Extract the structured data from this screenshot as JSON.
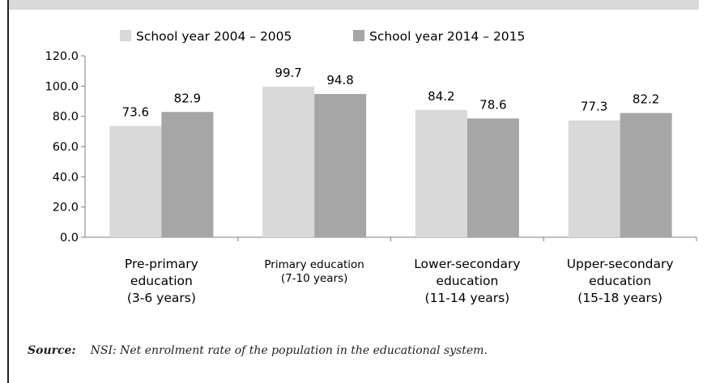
{
  "chart_data": {
    "type": "bar",
    "categories": [
      [
        "Pre-primary",
        "education",
        "(3-6 years)"
      ],
      [
        "Primary education",
        "(7-10 years)"
      ],
      [
        "Lower-secondary",
        "education",
        "(11-14 years)"
      ],
      [
        "Upper-secondary",
        "education",
        "(15-18 years)"
      ]
    ],
    "series": [
      {
        "name": "School year 2004 – 2005",
        "color": "#d9d9d9",
        "values": [
          73.6,
          99.7,
          84.2,
          77.3
        ]
      },
      {
        "name": "School year 2014 – 2015",
        "color": "#a6a6a6",
        "values": [
          82.9,
          94.8,
          78.6,
          82.2
        ]
      }
    ],
    "yticks": [
      "0.0",
      "20.0",
      "40.0",
      "60.0",
      "80.0",
      "100.0",
      "120.0"
    ],
    "ylim": [
      0,
      120
    ],
    "legend_position": "top",
    "data_labels": true,
    "grid": false
  },
  "source": {
    "label": "Source:",
    "text": "NSI: Net enrolment rate of the population in the educational system."
  }
}
